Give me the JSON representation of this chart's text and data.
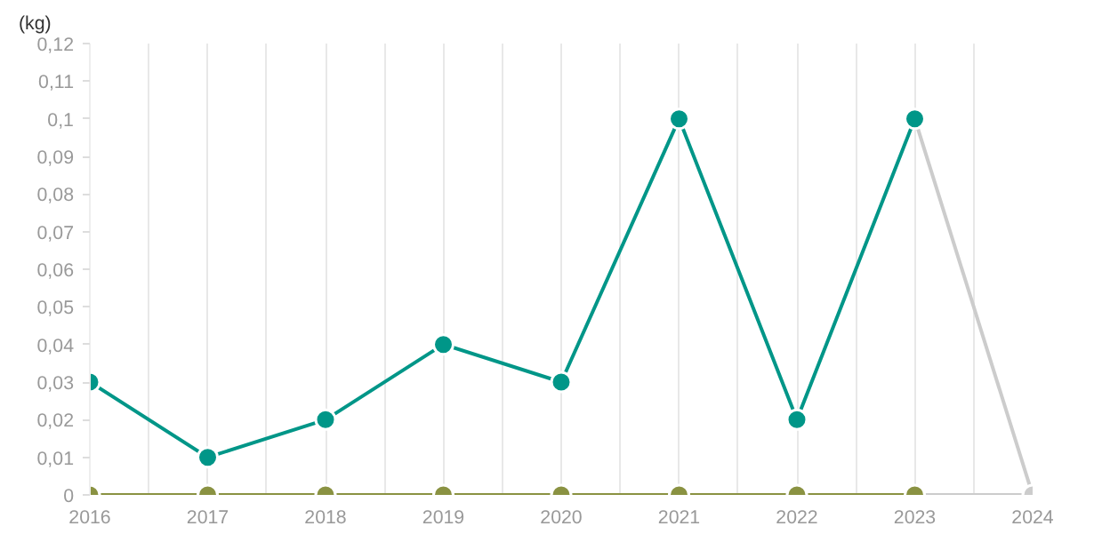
{
  "chart_data": {
    "type": "line",
    "ylabel": "(kg)",
    "x": [
      2016,
      2017,
      2018,
      2019,
      2020,
      2021,
      2022,
      2023,
      2024
    ],
    "series": [
      {
        "color": "#009688",
        "marker": "circle",
        "values": [
          0.03,
          0.01,
          0.02,
          0.04,
          0.03,
          0.1,
          0.02,
          0.1,
          null
        ]
      },
      {
        "color": "#8a9242",
        "marker": "circle",
        "values": [
          0,
          0,
          0,
          0,
          0,
          0,
          0,
          0,
          null
        ]
      },
      {
        "color": "#cccccc",
        "marker": "circle",
        "values": [
          null,
          null,
          null,
          null,
          null,
          null,
          null,
          null,
          0
        ]
      },
      {
        "color": "#cccccc",
        "marker": "none",
        "values": [
          null,
          null,
          null,
          null,
          null,
          null,
          null,
          0.1,
          0
        ]
      },
      {
        "color": "#cccccc",
        "marker": "none",
        "values": [
          null,
          null,
          null,
          null,
          null,
          null,
          null,
          0,
          0
        ]
      }
    ],
    "xlim": [
      2016,
      2024
    ],
    "xticks": [
      2016,
      {
        "value": 2016.5,
        "label": null
      },
      2017,
      {
        "value": 2017.5,
        "label": null
      },
      2018,
      {
        "value": 2018.5,
        "label": null
      },
      2019,
      {
        "value": 2019.5,
        "label": null
      },
      2020,
      {
        "value": 2020.5,
        "label": null
      },
      2021,
      {
        "value": 2021.5,
        "label": null
      },
      2022,
      {
        "value": 2022.5,
        "label": null
      },
      2023,
      {
        "value": 2023.5,
        "label": null
      },
      2024
    ],
    "ylim": [
      0,
      0.12
    ],
    "yticks": [
      {
        "value": 0,
        "label": "0"
      },
      {
        "value": 0.01,
        "label": "0,01"
      },
      {
        "value": 0.02,
        "label": "0,02"
      },
      {
        "value": 0.03,
        "label": "0,03"
      },
      {
        "value": 0.04,
        "label": "0,04"
      },
      {
        "value": 0.05,
        "label": "0,05"
      },
      {
        "value": 0.06,
        "label": "0,06"
      },
      {
        "value": 0.07,
        "label": "0,07"
      },
      {
        "value": 0.08,
        "label": "0,08"
      },
      {
        "value": 0.09,
        "label": "0,09"
      },
      {
        "value": 0.1,
        "label": "0,1"
      },
      {
        "value": 0.11,
        "label": "0,11"
      },
      {
        "value": 0.12,
        "label": "0,12"
      }
    ],
    "grid": "x"
  }
}
